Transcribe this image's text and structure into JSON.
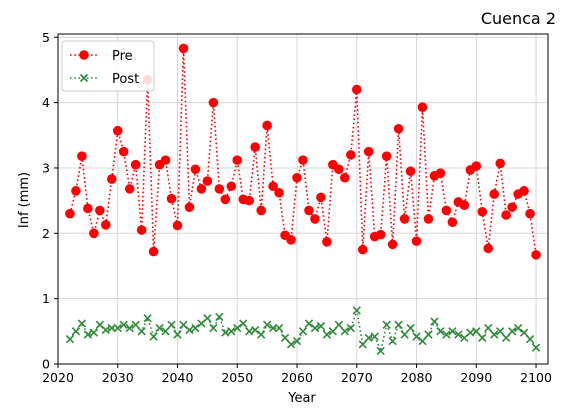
{
  "chart_data": {
    "type": "line",
    "title": "Cuenca 2",
    "xlabel": "Year",
    "ylabel": "Inf (mm)",
    "xlim": [
      2020,
      2102
    ],
    "ylim": [
      0,
      5.05
    ],
    "xticks": [
      "2020",
      "2030",
      "2040",
      "2050",
      "2060",
      "2070",
      "2080",
      "2090",
      "2100"
    ],
    "yticks": [
      "0",
      "1",
      "2",
      "3",
      "4",
      "5"
    ],
    "grid": true,
    "legend_position": "top-left",
    "x": [
      2022,
      2023,
      2024,
      2025,
      2026,
      2027,
      2028,
      2029,
      2030,
      2031,
      2032,
      2033,
      2034,
      2035,
      2036,
      2037,
      2038,
      2039,
      2040,
      2041,
      2042,
      2043,
      2044,
      2045,
      2046,
      2047,
      2048,
      2049,
      2050,
      2051,
      2052,
      2053,
      2054,
      2055,
      2056,
      2057,
      2058,
      2059,
      2060,
      2061,
      2062,
      2063,
      2064,
      2065,
      2066,
      2067,
      2068,
      2069,
      2070,
      2071,
      2072,
      2073,
      2074,
      2075,
      2076,
      2077,
      2078,
      2079,
      2080,
      2081,
      2082,
      2083,
      2084,
      2085,
      2086,
      2087,
      2088,
      2089,
      2090,
      2091,
      2092,
      2093,
      2094,
      2095,
      2096,
      2097,
      2098,
      2099,
      2100
    ],
    "series": [
      {
        "name": "Pre",
        "color": "#ff0000",
        "marker": "circle",
        "linestyle": "dotted",
        "values": [
          2.3,
          2.65,
          3.18,
          2.38,
          2.0,
          2.35,
          2.13,
          2.83,
          3.57,
          3.25,
          2.68,
          3.05,
          2.05,
          4.35,
          1.72,
          3.05,
          3.12,
          2.53,
          2.12,
          4.83,
          2.4,
          2.98,
          2.68,
          2.8,
          4.0,
          2.68,
          2.52,
          2.72,
          3.12,
          2.52,
          2.5,
          3.32,
          2.35,
          3.65,
          2.72,
          2.62,
          1.97,
          1.9,
          2.85,
          3.12,
          2.35,
          2.22,
          2.55,
          1.87,
          3.05,
          2.98,
          2.85,
          3.2,
          4.2,
          1.75,
          3.25,
          1.95,
          1.98,
          3.18,
          1.83,
          3.6,
          2.22,
          2.95,
          1.88,
          3.93,
          2.22,
          2.88,
          2.92,
          2.35,
          2.17,
          2.48,
          2.43,
          2.97,
          3.03,
          2.33,
          1.77,
          2.6,
          3.07,
          2.28,
          2.4,
          2.6,
          2.65,
          2.3,
          1.67
        ]
      },
      {
        "name": "Post",
        "color": "#2e8b3a",
        "marker": "x",
        "linestyle": "dotted",
        "values": [
          0.38,
          0.5,
          0.62,
          0.45,
          0.48,
          0.6,
          0.52,
          0.55,
          0.55,
          0.6,
          0.55,
          0.6,
          0.5,
          0.7,
          0.42,
          0.55,
          0.5,
          0.6,
          0.45,
          0.6,
          0.52,
          0.55,
          0.62,
          0.7,
          0.55,
          0.72,
          0.48,
          0.5,
          0.55,
          0.62,
          0.5,
          0.52,
          0.45,
          0.6,
          0.55,
          0.55,
          0.4,
          0.3,
          0.35,
          0.5,
          0.62,
          0.55,
          0.58,
          0.45,
          0.5,
          0.6,
          0.5,
          0.55,
          0.82,
          0.3,
          0.4,
          0.42,
          0.2,
          0.6,
          0.35,
          0.6,
          0.45,
          0.55,
          0.42,
          0.35,
          0.45,
          0.65,
          0.5,
          0.45,
          0.5,
          0.45,
          0.4,
          0.48,
          0.5,
          0.4,
          0.55,
          0.45,
          0.5,
          0.4,
          0.5,
          0.55,
          0.48,
          0.38,
          0.25
        ]
      }
    ]
  }
}
